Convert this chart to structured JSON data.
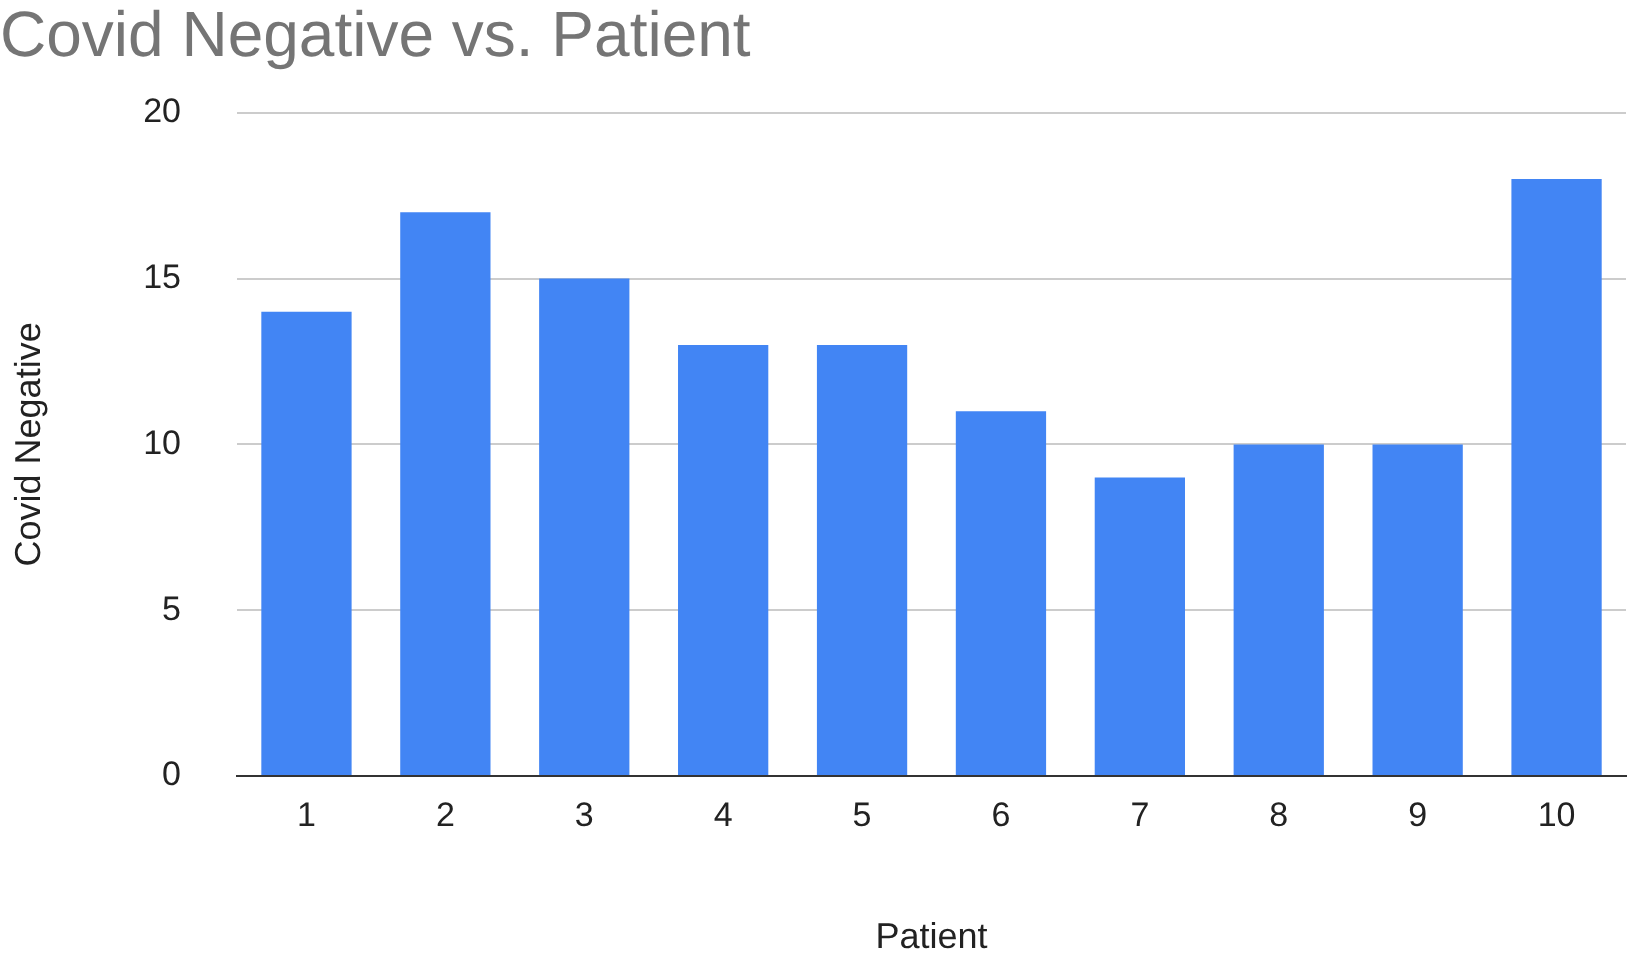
{
  "chart_data": {
    "type": "bar",
    "title": "Covid Negative vs. Patient",
    "xlabel": "Patient",
    "ylabel": "Covid Negative",
    "categories": [
      "1",
      "2",
      "3",
      "4",
      "5",
      "6",
      "7",
      "8",
      "9",
      "10"
    ],
    "values": [
      14,
      17,
      15,
      13,
      13,
      11,
      9,
      10,
      10,
      18
    ],
    "color": "#4285f4",
    "ylim": [
      0,
      20
    ],
    "yticks": [
      0,
      5,
      10,
      15,
      20
    ],
    "grid": "y"
  }
}
